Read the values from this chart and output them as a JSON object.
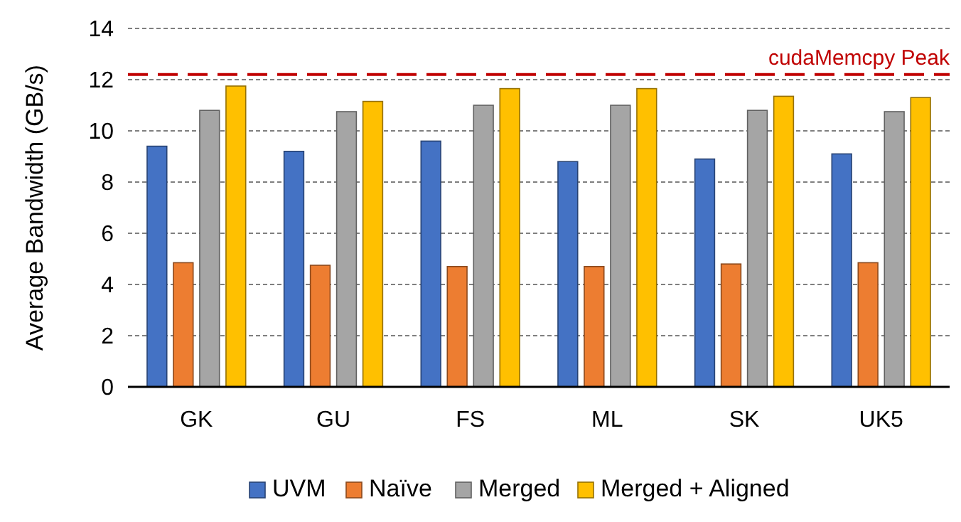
{
  "chart_data": {
    "type": "bar",
    "ylabel": "Average Bandwidth (GB/s)",
    "categories": [
      "GK",
      "GU",
      "FS",
      "ML",
      "SK",
      "UK5"
    ],
    "series": [
      {
        "name": "UVM",
        "color": "#4472c4",
        "values": [
          9.4,
          9.2,
          9.6,
          8.8,
          8.9,
          9.1
        ]
      },
      {
        "name": "Naïve",
        "color": "#ed7d31",
        "values": [
          4.85,
          4.75,
          4.7,
          4.7,
          4.8,
          4.85
        ]
      },
      {
        "name": "Merged",
        "color": "#a5a5a5",
        "values": [
          10.8,
          10.75,
          11.0,
          11.0,
          10.8,
          10.75
        ]
      },
      {
        "name": "Merged + Aligned",
        "color": "#ffc000",
        "values": [
          11.75,
          11.15,
          11.65,
          11.65,
          11.35,
          11.3
        ]
      }
    ],
    "ylim": [
      0,
      14
    ],
    "yticks": [
      0,
      2,
      4,
      6,
      8,
      10,
      12,
      14
    ],
    "grid": "y",
    "legend": "bottom",
    "ref_lines": [
      {
        "axis": "y",
        "value": 12.2,
        "label": "cudaMemcpy Peak",
        "color": "#c00000",
        "line_style": "dashed"
      }
    ]
  }
}
